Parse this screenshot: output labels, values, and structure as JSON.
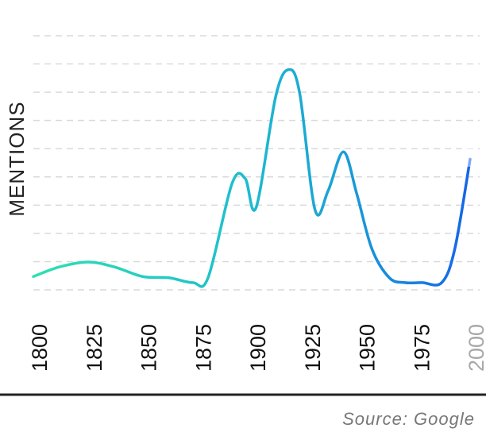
{
  "chart_data": {
    "type": "line",
    "ylabel": "MENTIONS",
    "x_ticks": [
      "1800",
      "1825",
      "1850",
      "1875",
      "1900",
      "1925",
      "1950",
      "1975",
      "2000"
    ],
    "faded_tick": "2000",
    "grid": true,
    "series": [
      {
        "x": [
          1800,
          1812,
          1825,
          1837,
          1850,
          1862,
          1873,
          1880,
          1891,
          1897,
          1902,
          1911,
          1917,
          1922,
          1929,
          1935,
          1942,
          1948,
          1955,
          1963,
          1970,
          1978,
          1987,
          1993,
          2000
        ],
        "y": [
          5.5,
          9.5,
          11.5,
          9.5,
          5.5,
          5.0,
          3.0,
          5.0,
          44.0,
          46.0,
          34.0,
          80.0,
          91.0,
          81.0,
          33.0,
          41.0,
          57.0,
          40.0,
          17.0,
          5.0,
          3.0,
          3.0,
          3.0,
          17.0,
          54.0
        ]
      }
    ],
    "ylim": [
      0,
      105
    ],
    "xlim": [
      1800,
      2000
    ],
    "colors": {
      "start": "#2ee0b0",
      "middle": "#1aa6d8",
      "end": "#1565e8",
      "grid": "#d9d9d9",
      "axis": "#222222"
    }
  },
  "source": "Source: Google"
}
